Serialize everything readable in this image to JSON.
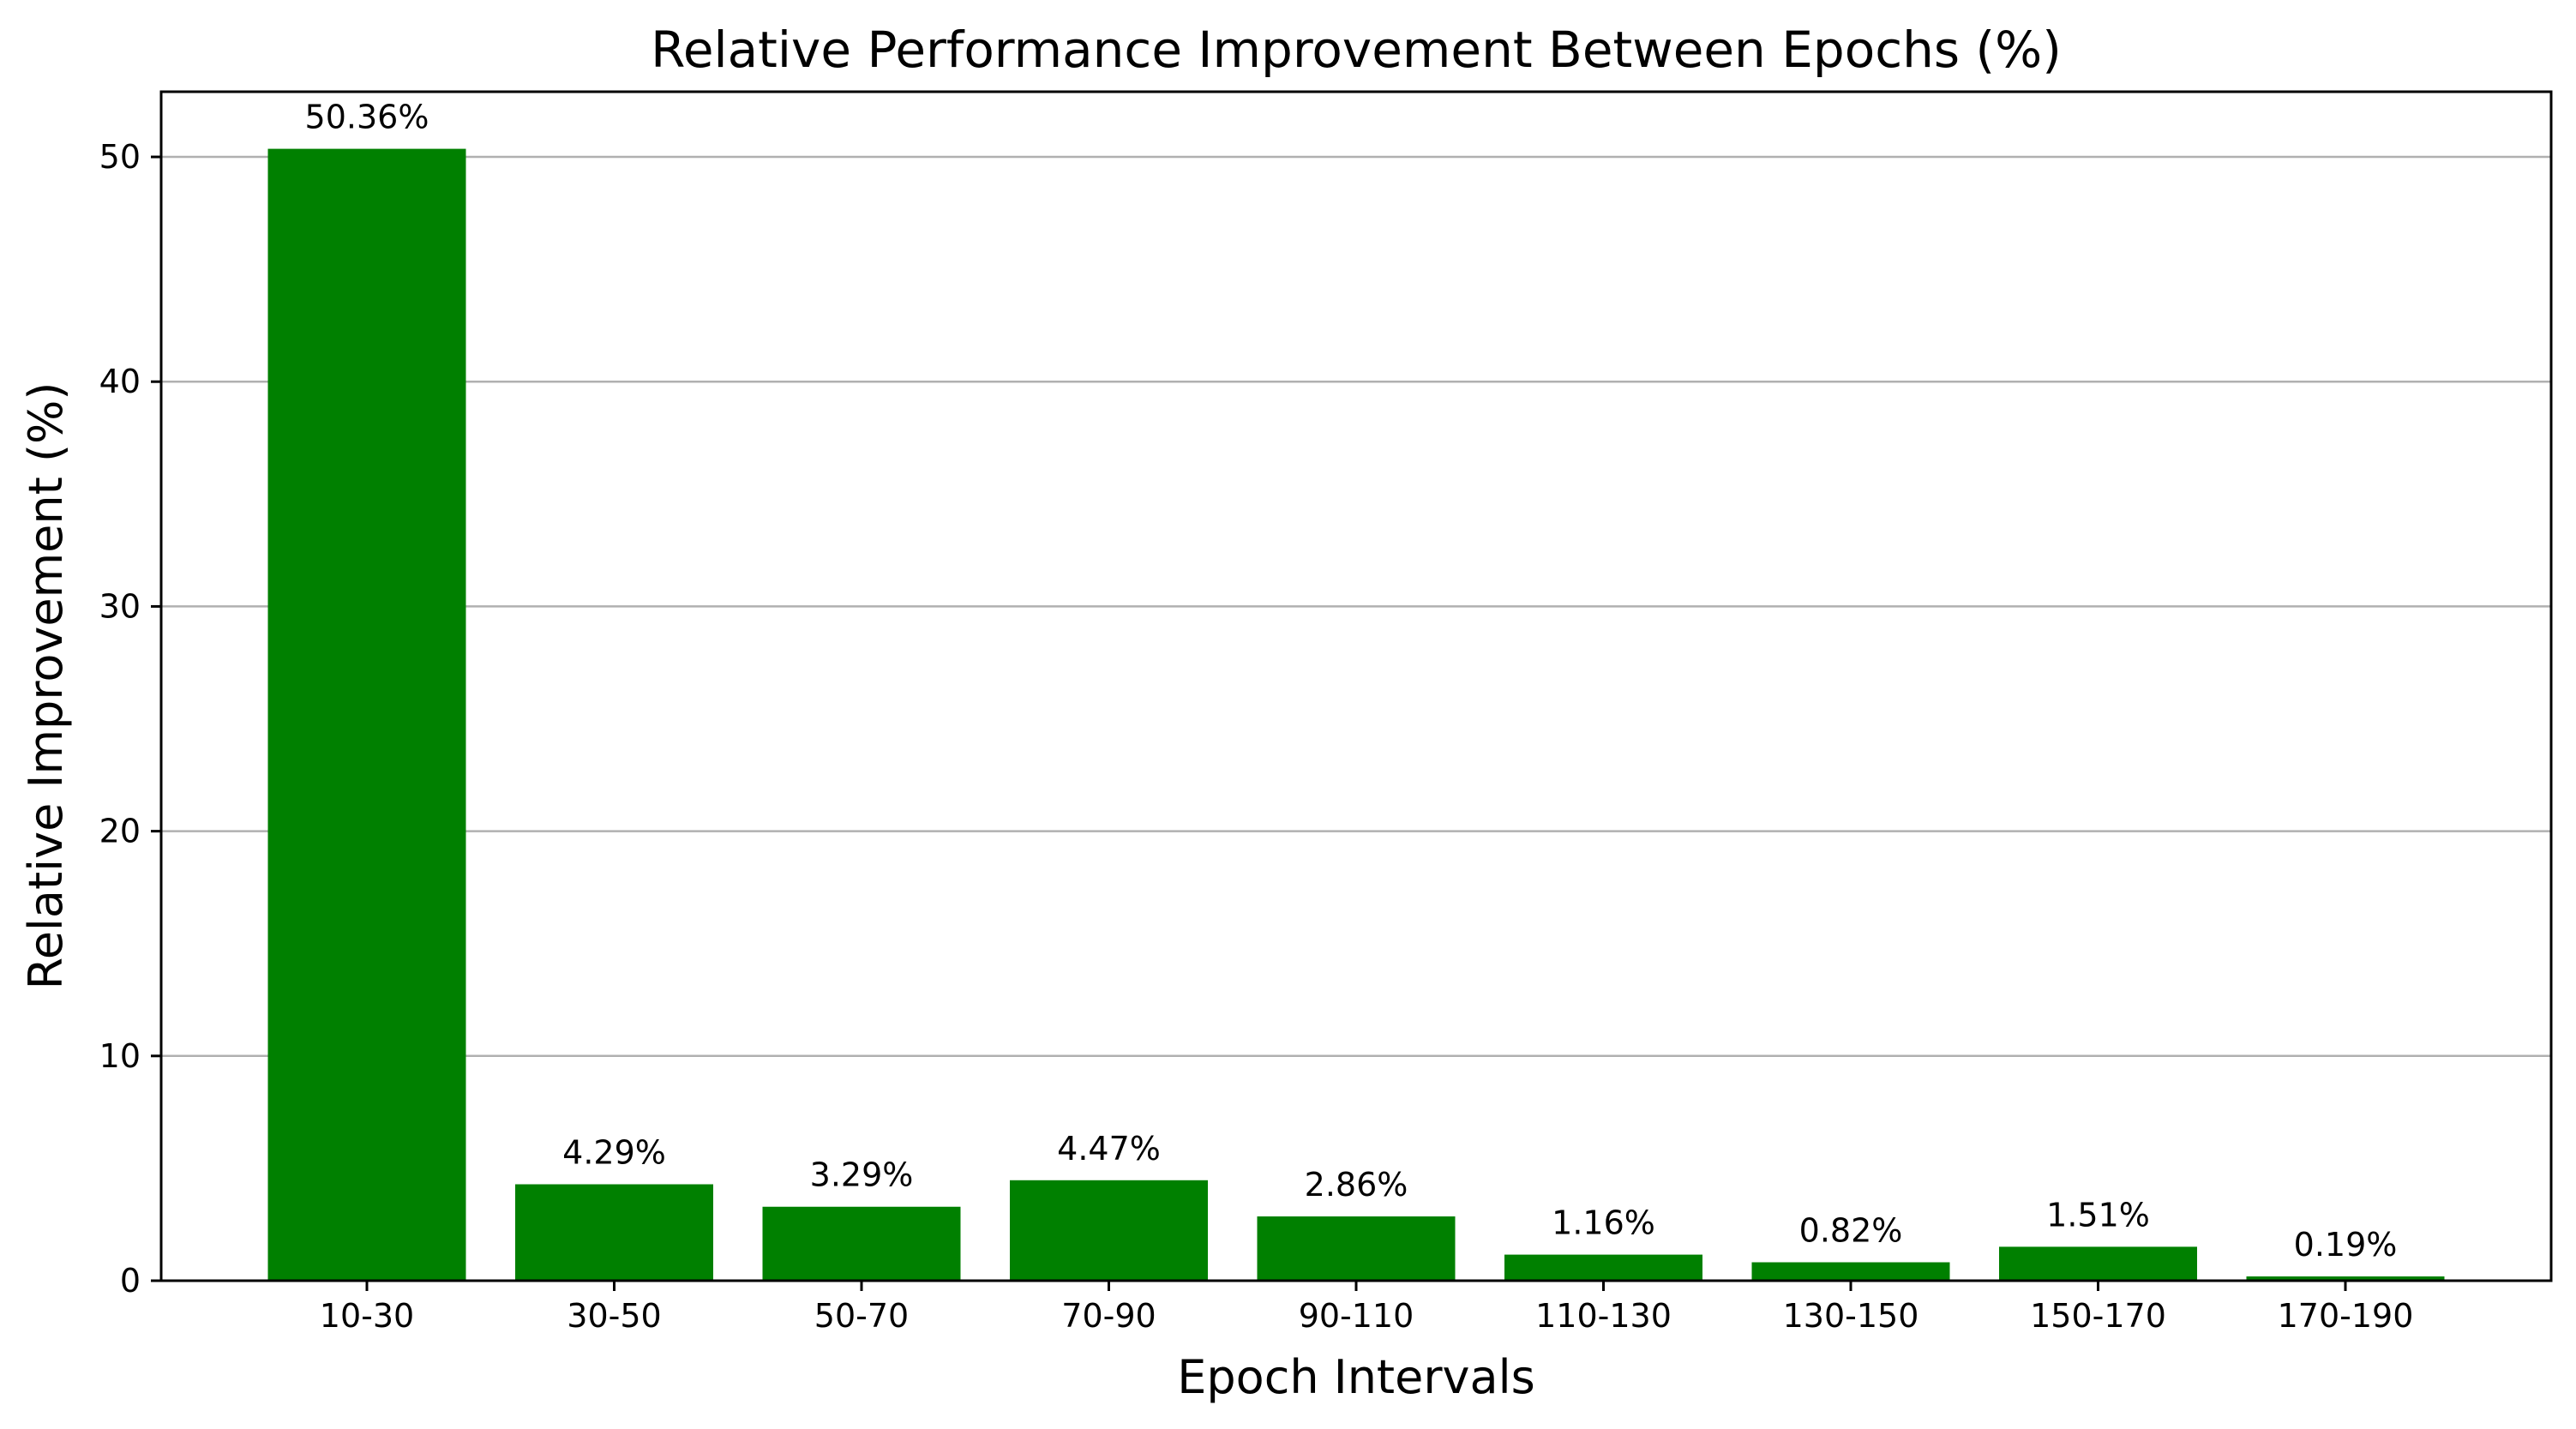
{
  "chart_data": {
    "type": "bar",
    "title": "Relative Performance Improvement Between Epochs (%)",
    "xlabel": "Epoch Intervals",
    "ylabel": "Relative Improvement (%)",
    "categories": [
      "10-30",
      "30-50",
      "50-70",
      "70-90",
      "90-110",
      "110-130",
      "130-150",
      "150-170",
      "170-190"
    ],
    "values": [
      50.36,
      4.29,
      3.29,
      4.47,
      2.86,
      1.16,
      0.82,
      1.51,
      0.19
    ],
    "data_labels": [
      "50.36%",
      "4.29%",
      "3.29%",
      "4.47%",
      "2.86%",
      "1.16%",
      "0.82%",
      "1.51%",
      "0.19%"
    ],
    "ylim": [
      0,
      52.9
    ],
    "yticks": [
      0,
      10,
      20,
      30,
      40,
      50
    ],
    "grid": "y",
    "bar_color": "#008000"
  }
}
